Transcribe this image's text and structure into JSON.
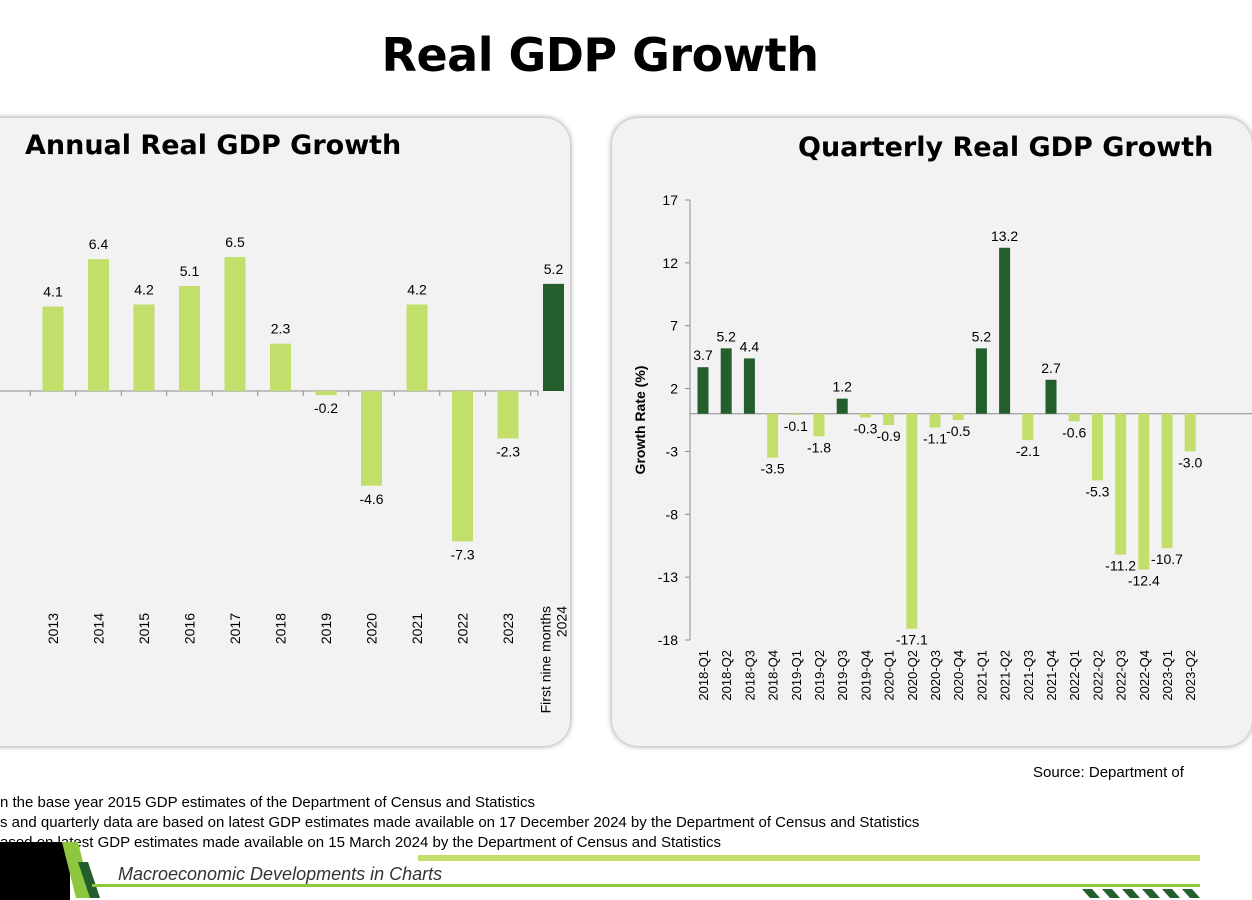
{
  "page_title": "Real GDP Growth",
  "notes": [
    "n the base year 2015 GDP estimates of the Department of Census and Statistics",
    "s and quarterly data are based on latest GDP estimates made available on 17 December 2024 by the Department of Census and Statistics",
    "ased on latest GDP estimates made available on 15 March 2024  by the Department of Census and Statistics"
  ],
  "source": "Source: Department of",
  "footer": {
    "text": "Macroeconomic Developments in Charts"
  },
  "colors": {
    "light_green": "#c1df6a",
    "dark_green": "#245e2c",
    "accent_green": "#8dc63f",
    "black": "#000000"
  },
  "chart_data": [
    {
      "type": "bar",
      "title": "Annual Real GDP Growth",
      "categories": [
        "2013",
        "2014",
        "2015",
        "2016",
        "2017",
        "2018",
        "2019",
        "2020",
        "2021",
        "2022",
        "2023",
        "First nine months 2024"
      ],
      "values": [
        4.1,
        6.4,
        4.2,
        5.1,
        6.5,
        2.3,
        -0.2,
        -4.6,
        4.2,
        -7.3,
        -2.3,
        5.2
      ],
      "label_texts": [
        "4.1",
        "6.4",
        "4.2",
        "5.1",
        "6.5",
        "2.3",
        "-0.2",
        "-4.6",
        "4.2",
        "-7.3",
        "-2.3",
        "5.2"
      ],
      "highlight_index": 11,
      "xlabel": "",
      "ylabel": ""
    },
    {
      "type": "bar",
      "title": "Quarterly Real GDP Growth",
      "categories": [
        "2018-Q1",
        "2018-Q2",
        "2018-Q3",
        "2018-Q4",
        "2019-Q1",
        "2019-Q2",
        "2019-Q3",
        "2019-Q4",
        "2020-Q1",
        "2020-Q2",
        "2020-Q3",
        "2020-Q4",
        "2021-Q1",
        "2021-Q2",
        "2021-Q3",
        "2021-Q4",
        "2022-Q1",
        "2022-Q2",
        "2022-Q3",
        "2022-Q4",
        "2023-Q1",
        "2023-Q2"
      ],
      "values": [
        3.7,
        5.2,
        4.4,
        -3.5,
        -0.1,
        -1.8,
        1.2,
        -0.3,
        -0.9,
        -17.1,
        -1.1,
        -0.5,
        5.2,
        13.2,
        -2.1,
        2.7,
        -0.6,
        -5.3,
        -11.2,
        -12.4,
        -10.7,
        -3.0
      ],
      "label_texts": [
        "3.7",
        "5.2",
        "4.4",
        "-3.5",
        "-0.1",
        "-1.8",
        "1.2",
        "-0.3",
        "-0.9",
        "-17.1",
        "-1.1",
        "-0.5",
        "5.2",
        "13.2",
        "-2.1",
        "2.7",
        "-0.6",
        "-5.3",
        "-11.2",
        "-12.4",
        "-10.7",
        "-3.0"
      ],
      "ylabel": "Growth Rate (%)",
      "xlabel": "",
      "ylim": [
        -18,
        17
      ],
      "yticks": [
        17,
        12,
        7,
        2,
        -3,
        -8,
        -13,
        -18
      ]
    }
  ]
}
